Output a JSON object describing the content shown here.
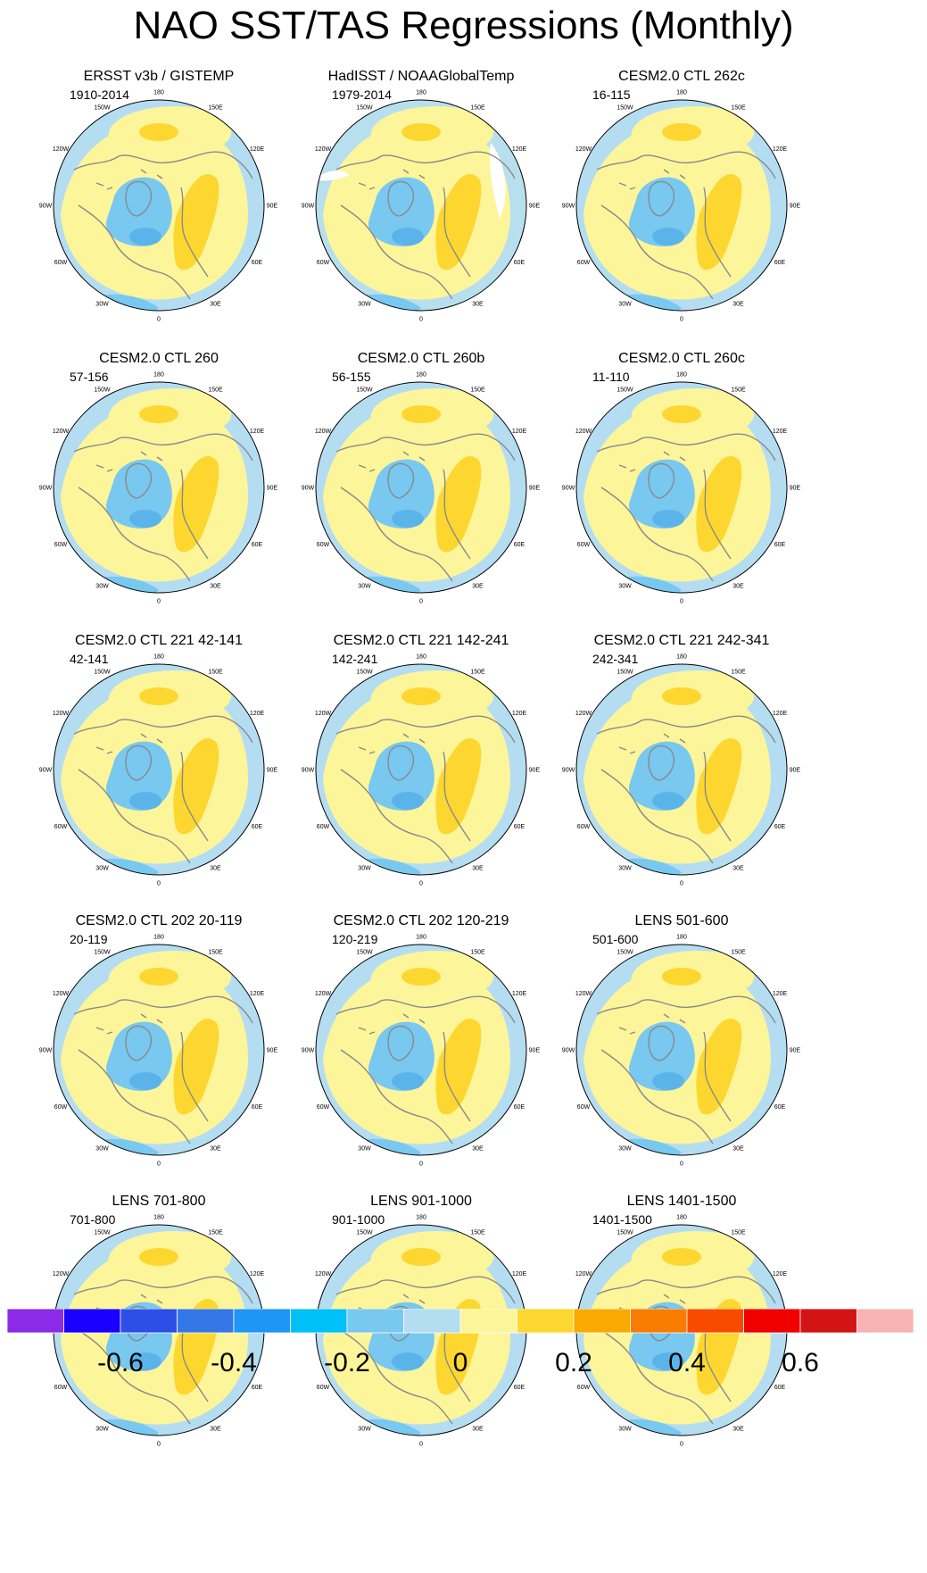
{
  "title": "NAO SST/TAS Regressions (Monthly)",
  "panels": [
    {
      "title": "ERSST v3b / GISTEMP",
      "period": "1910-2014",
      "variant": "obs1"
    },
    {
      "title": "HadISST / NOAAGlobalTemp",
      "period": "1979-2014",
      "variant": "obs2"
    },
    {
      "title": "CESM2.0 CTL 262c",
      "period": "16-115",
      "variant": "model"
    },
    {
      "title": "CESM2.0 CTL 260",
      "period": "57-156",
      "variant": "model"
    },
    {
      "title": "CESM2.0 CTL 260b",
      "period": "56-155",
      "variant": "model"
    },
    {
      "title": "CESM2.0 CTL 260c",
      "period": "11-110",
      "variant": "model"
    },
    {
      "title": "CESM2.0 CTL 221 42-141",
      "period": "42-141",
      "variant": "model"
    },
    {
      "title": "CESM2.0 CTL 221 142-241",
      "period": "142-241",
      "variant": "model"
    },
    {
      "title": "CESM2.0 CTL 221 242-341",
      "period": "242-341",
      "variant": "model"
    },
    {
      "title": "CESM2.0 CTL 202 20-119",
      "period": "20-119",
      "variant": "model"
    },
    {
      "title": "CESM2.0 CTL 202 120-219",
      "period": "120-219",
      "variant": "model"
    },
    {
      "title": "LENS 501-600",
      "period": "501-600",
      "variant": "model"
    },
    {
      "title": "LENS 701-800",
      "period": "701-800",
      "variant": "model"
    },
    {
      "title": "LENS 901-1000",
      "period": "901-1000",
      "variant": "model"
    },
    {
      "title": "LENS 1401-1500",
      "period": "1401-1500",
      "variant": "model"
    }
  ],
  "longitude_labels": [
    "180",
    "150E",
    "120E",
    "90E",
    "60E",
    "30E",
    "0",
    "30W",
    "60W",
    "90W",
    "120W",
    "150W"
  ],
  "colorbar": {
    "colors": [
      "#8b2be8",
      "#1a00ff",
      "#2e4ee8",
      "#3478e8",
      "#1e96f8",
      "#00c0f8",
      "#78c8f0",
      "#b4ddf2",
      "#fdf59a",
      "#fdd72f",
      "#f8aa00",
      "#f87c00",
      "#f84b00",
      "#f00000",
      "#d41414",
      "#f8b4b4"
    ],
    "labels": [
      "-0.6",
      "-0.4",
      "-0.2",
      "0",
      "0.2",
      "0.4",
      "0.6"
    ]
  },
  "field_colors": {
    "negative_weak": "#b4ddf2",
    "negative_mid": "#78c8f0",
    "positive_weak": "#fdf59a",
    "positive_mid": "#fdd72f",
    "missing": "#ffffff",
    "coast": "#8a8a8a"
  }
}
